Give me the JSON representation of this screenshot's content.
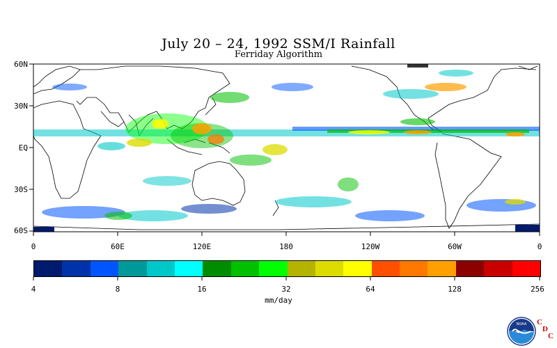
{
  "title": "July 20 – 24, 1992 SSM/I Rainfall",
  "subtitle": "Ferriday Algorithm",
  "lat_labels": [
    "60N",
    "30N",
    "EQ",
    "30S",
    "60S"
  ],
  "lon_labels": [
    "0",
    "60E",
    "120E",
    "180",
    "120W",
    "60W",
    "0"
  ],
  "legend": {
    "colors": [
      "#001a6e",
      "#0033aa",
      "#0055ff",
      "#009999",
      "#00c8c8",
      "#00ffff",
      "#008c00",
      "#00c000",
      "#00ff00",
      "#b4b400",
      "#dcdc00",
      "#ffff00",
      "#ff5000",
      "#ff7800",
      "#ffa000",
      "#8c0000",
      "#c80000",
      "#ff0000"
    ],
    "tick_labels": [
      "4",
      "8",
      "16",
      "32",
      "64",
      "128",
      "256"
    ],
    "units": "mm/day"
  },
  "logo": {
    "name": "NOAA",
    "letters": [
      "C",
      "D",
      "C"
    ]
  }
}
